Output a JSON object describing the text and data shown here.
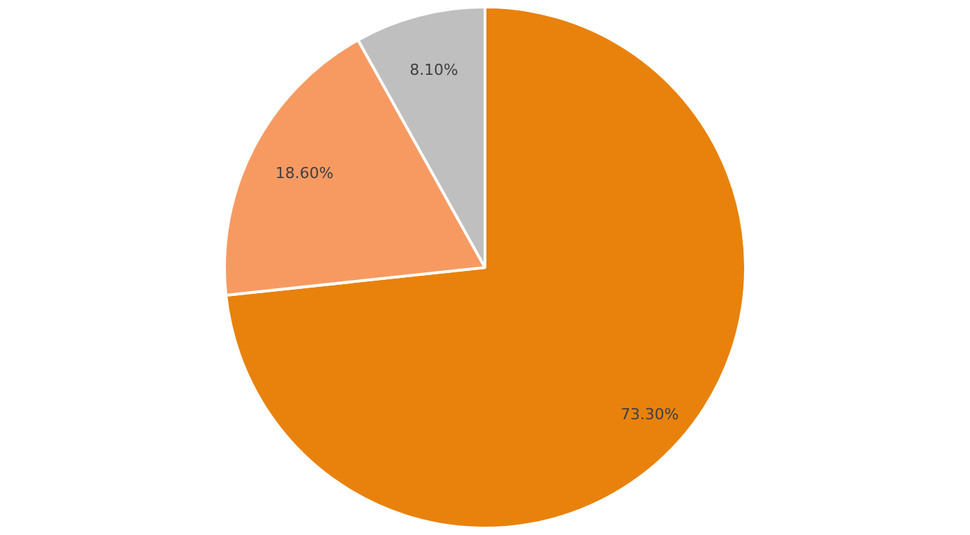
{
  "chart_data": {
    "type": "pie",
    "categories": [
      null,
      null,
      null
    ],
    "values": [
      73.3,
      18.6,
      8.1
    ],
    "colors": [
      "#e8820c",
      "#f79a62",
      "#bfbfbf"
    ],
    "value_labels": [
      "73.30%",
      "18.60%",
      "8.10%"
    ],
    "legend": false
  }
}
